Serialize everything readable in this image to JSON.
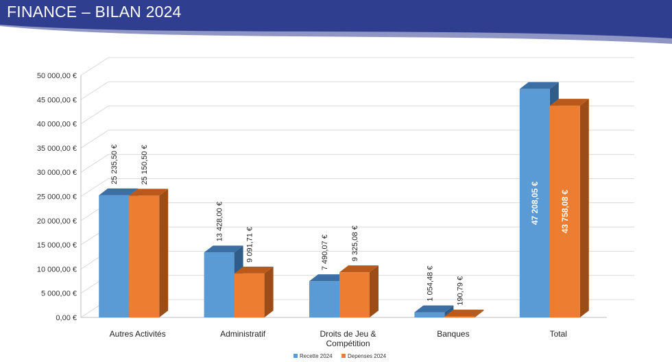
{
  "page": {
    "title": "FINANCE – BILAN 2024"
  },
  "colors": {
    "banner": "#2f3e8e",
    "banner_wave": "#8f96c4",
    "recette_front": "#5b9bd5",
    "recette_top": "#3c6fa3",
    "recette_side": "#2f5c89",
    "depenses_front": "#ed7d31",
    "depenses_top": "#b95a1a",
    "depenses_side": "#9c4c16",
    "grid": "#d9d9d9",
    "wall": "#bfbfbf"
  },
  "chart_data": {
    "type": "bar",
    "categories": [
      "Autres Activités",
      "Administratif",
      "Droits de Jeu & Compétition",
      "Banques",
      "Total"
    ],
    "category_lines": [
      [
        "Autres Activités"
      ],
      [
        "Administratif"
      ],
      [
        "Droits de Jeu &",
        "Compétition"
      ],
      [
        "Banques"
      ],
      [
        "Total"
      ]
    ],
    "series": [
      {
        "name": "Recette 2024",
        "values": [
          25235.5,
          13428.0,
          7490.07,
          1054.48,
          47208.05
        ],
        "labels": [
          "25 235,50 €",
          "13 428,00 €",
          "7 490,07 €",
          "1 054,48 €",
          "47 208,05 €"
        ]
      },
      {
        "name": "Depenses 2024",
        "values": [
          25150.5,
          9091.71,
          9325.08,
          190.79,
          43758.08
        ],
        "labels": [
          "25 150,50 €",
          "9 091,71 €",
          "9 325,08 €",
          "190,79 €",
          "43 758,08 €"
        ]
      }
    ],
    "ylim": [
      0,
      50000
    ],
    "ytick_values": [
      0,
      5000,
      10000,
      15000,
      20000,
      25000,
      30000,
      35000,
      40000,
      45000,
      50000
    ],
    "yticks": [
      "0,00 €",
      "5 000,00 €",
      "10 000,00 €",
      "15 000,00 €",
      "20 000,00 €",
      "25 000,00 €",
      "30 000,00 €",
      "35 000,00 €",
      "40 000,00 €",
      "45 000,00 €",
      "50 000,00 €"
    ],
    "legend": [
      "Recette 2024",
      "Depenses 2024"
    ],
    "legend_position": "bottom",
    "grid": true
  }
}
